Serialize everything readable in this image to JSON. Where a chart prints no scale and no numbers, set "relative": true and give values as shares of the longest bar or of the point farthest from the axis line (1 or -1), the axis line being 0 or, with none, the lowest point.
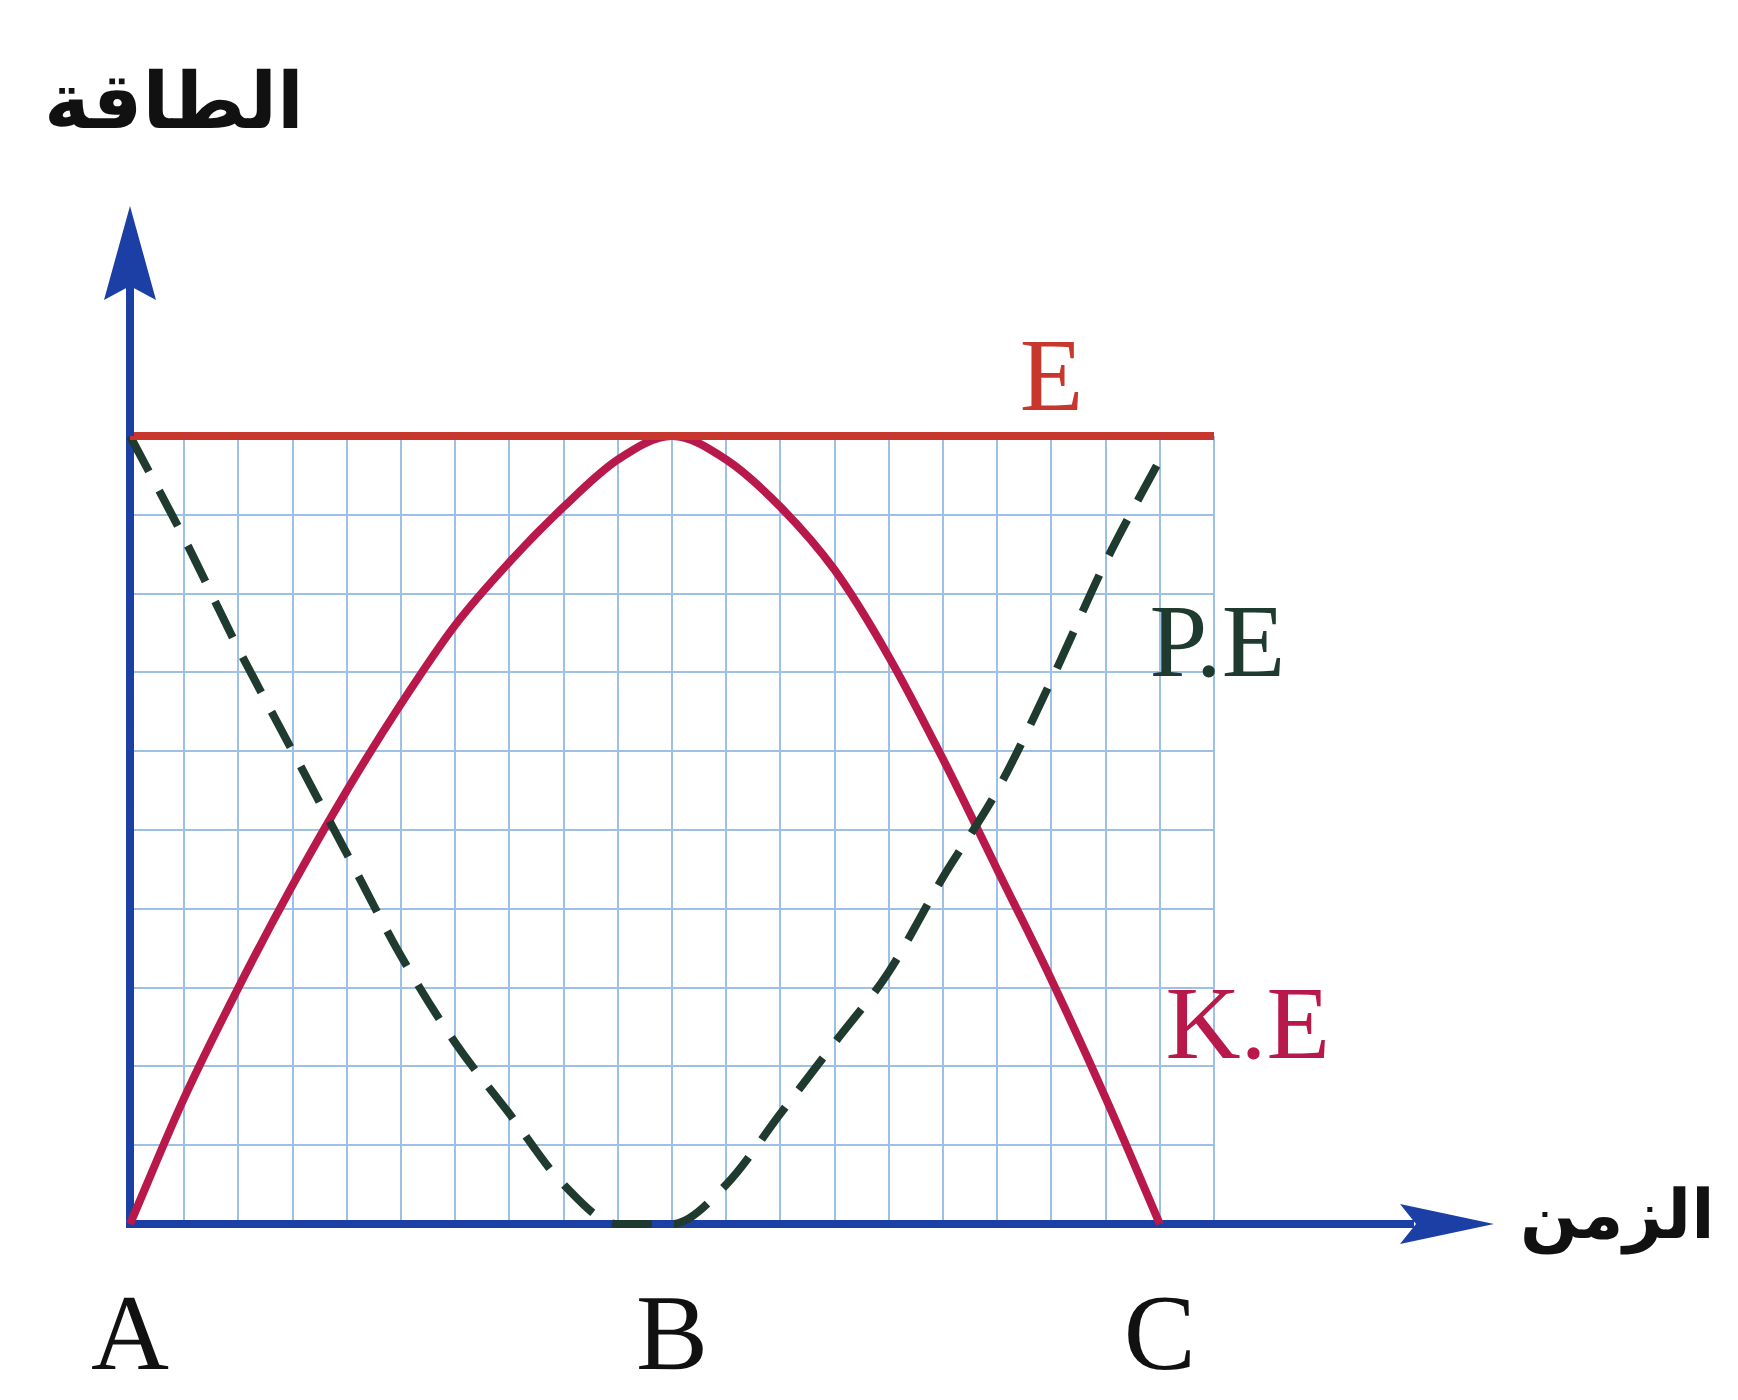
{
  "chart_data": {
    "type": "line",
    "xlabel": "الزمن",
    "ylabel": "الطاقة",
    "relative": true,
    "grid": true,
    "marker": "none",
    "categories": [
      "A",
      null,
      null,
      null,
      null,
      null,
      null,
      null,
      null,
      null,
      "B",
      null,
      null,
      null,
      null,
      null,
      null,
      null,
      null,
      "C",
      null
    ],
    "series": [
      {
        "name": "E",
        "color": "#c8372d",
        "values": [
          1,
          1,
          1,
          1,
          1,
          1,
          1,
          1,
          1,
          1,
          1,
          1,
          1,
          1,
          1,
          1,
          1,
          1,
          1,
          1,
          1
        ]
      },
      {
        "name": "P.E",
        "color": "#1f3a2e",
        "line_style": "dashed",
        "values": [
          1,
          0.87,
          0.73,
          0.6,
          0.47,
          0.34,
          0.23,
          0.14,
          0.05,
          0,
          0,
          0.05,
          0.14,
          0.23,
          0.32,
          0.44,
          0.55,
          0.69,
          0.84,
          0.97,
          null
        ]
      },
      {
        "name": "K.E",
        "color": "#b8194a",
        "values": [
          0,
          0.16,
          0.3,
          0.43,
          0.55,
          0.66,
          0.76,
          0.84,
          0.91,
          0.97,
          1,
          0.97,
          0.91,
          0.83,
          0.72,
          0.59,
          0.45,
          0.31,
          0.16,
          0,
          null
        ]
      }
    ]
  }
}
